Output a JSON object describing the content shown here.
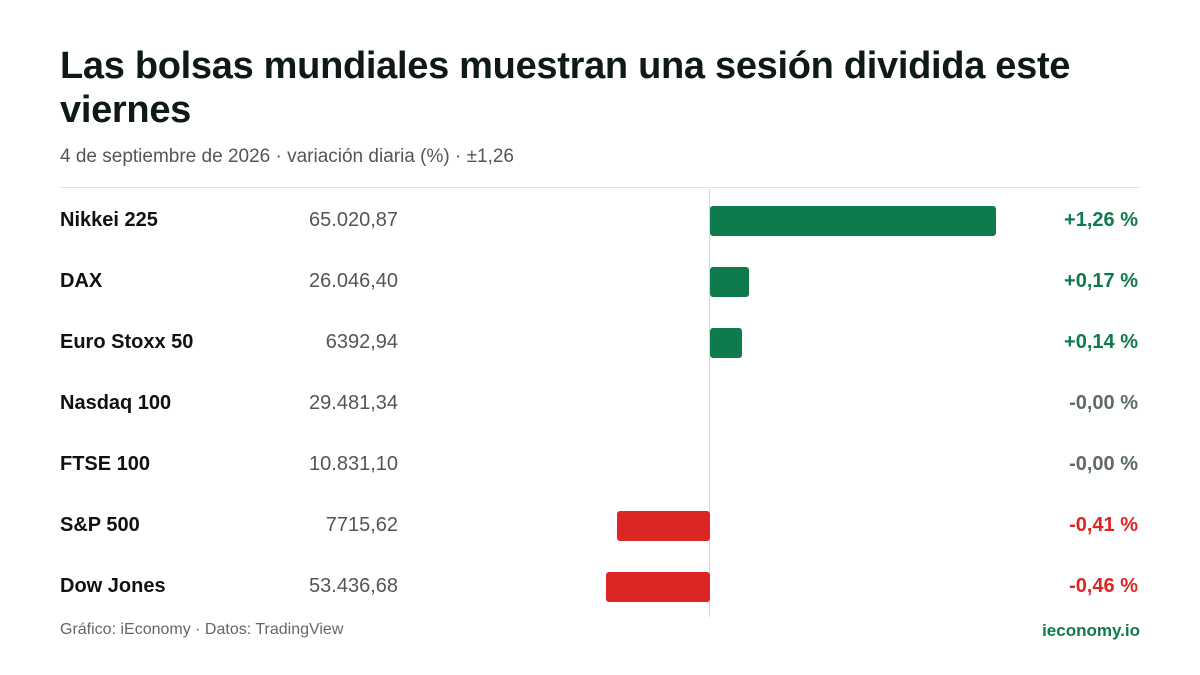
{
  "header": {
    "title": "Las bolsas mundiales muestran una sesión dividida este viernes",
    "subtitle": "4 de septiembre de 2026 · variación diaria (%) · ±1,26"
  },
  "footer": {
    "source": "Gráfico: iEconomy · Datos: TradingView",
    "brand": "ieconomy.io"
  },
  "colors": {
    "positive": "#0f7a4c",
    "negative": "#dc2626",
    "neutral": "#5f6b66",
    "brand": "#0f7a4c"
  },
  "chart_data": {
    "type": "bar",
    "orientation": "horizontal",
    "title": "Las bolsas mundiales muestran una sesión dividida este viernes",
    "subtitle": "4 de septiembre de 2026 · variación diaria (%) · ±1,26",
    "xlim": [
      -1.26,
      1.26
    ],
    "grid": false,
    "categories": [
      "Nikkei 225",
      "DAX",
      "Euro Stoxx 50",
      "Nasdaq 100",
      "FTSE 100",
      "S&P 500",
      "Dow Jones"
    ],
    "values": [
      1.26,
      0.17,
      0.14,
      -0.0,
      -0.0,
      -0.41,
      -0.46
    ],
    "rows": [
      {
        "name": "Nikkei 225",
        "price": "65.020,87",
        "value": 1.26,
        "label": "+1,26 %"
      },
      {
        "name": "DAX",
        "price": "26.046,40",
        "value": 0.17,
        "label": "+0,17 %"
      },
      {
        "name": "Euro Stoxx 50",
        "price": "6392,94",
        "value": 0.14,
        "label": "+0,14 %"
      },
      {
        "name": "Nasdaq 100",
        "price": "29.481,34",
        "value": -0.0,
        "label": "-0,00 %"
      },
      {
        "name": "FTSE 100",
        "price": "10.831,10",
        "value": -0.0,
        "label": "-0,00 %"
      },
      {
        "name": "S&P 500",
        "price": "7715,62",
        "value": -0.41,
        "label": "-0,41 %"
      },
      {
        "name": "Dow Jones",
        "price": "53.436,68",
        "value": -0.46,
        "label": "-0,46 %"
      }
    ]
  }
}
